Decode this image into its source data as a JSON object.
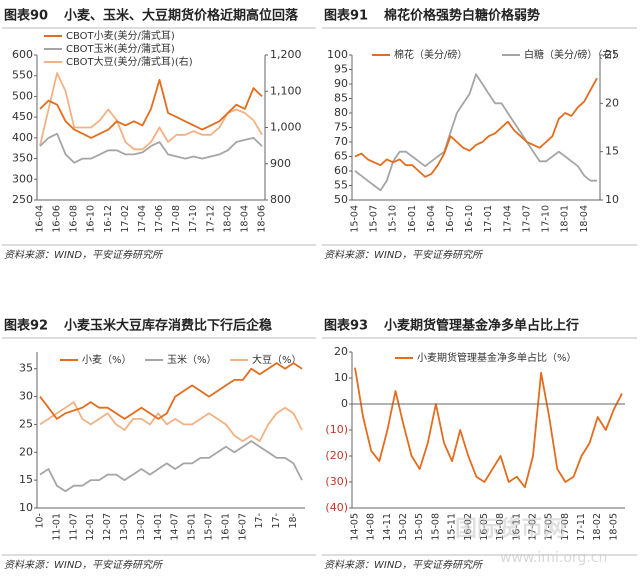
{
  "chart_data": [
    {
      "type": "line",
      "label": "图表90",
      "title": "小麦、玉米、大豆期货价格近期高位回落",
      "source": "资料来源：WIND，平安证券研究所",
      "categories": [
        "16-04",
        null,
        "16-06",
        null,
        "16-08",
        null,
        "16-10",
        null,
        "16-12",
        null,
        "17-02",
        null,
        "17-04",
        null,
        "17-06",
        null,
        "17-08",
        null,
        "17-10",
        null,
        "17-12",
        null,
        "18-02",
        null,
        "18-04",
        null,
        "18-06"
      ],
      "ylim": [
        250,
        600
      ],
      "yticks": [
        250,
        300,
        350,
        400,
        450,
        500,
        550,
        600
      ],
      "y2lim": [
        800,
        1200
      ],
      "y2ticks": [
        800,
        900,
        {
          "value": 1000,
          "label": "1,000"
        },
        {
          "value": 1100,
          "label": "1,100"
        },
        {
          "value": 1200,
          "label": "1,200"
        }
      ],
      "series": [
        {
          "name": "CBOT小麦(美分/蒲式耳)",
          "color": "#e36c1e",
          "values": [
            470,
            490,
            480,
            440,
            420,
            410,
            400,
            410,
            420,
            440,
            430,
            440,
            430,
            470,
            540,
            460,
            450,
            440,
            430,
            420,
            430,
            440,
            460,
            480,
            470,
            520,
            500
          ]
        },
        {
          "name": "CBOT玉米(美分/蒲式耳)",
          "color": "#a5a5a5",
          "values": [
            380,
            400,
            410,
            360,
            340,
            350,
            350,
            360,
            370,
            370,
            360,
            360,
            365,
            380,
            390,
            360,
            355,
            350,
            355,
            350,
            355,
            360,
            370,
            390,
            395,
            400,
            380
          ]
        },
        {
          "name": "CBOT大豆(美分/蒲式耳)(右)",
          "color": "#f4b183",
          "axis": "y2",
          "values": [
            950,
            1050,
            1150,
            1100,
            1000,
            1000,
            1000,
            1020,
            1050,
            1020,
            960,
            940,
            940,
            960,
            1000,
            960,
            980,
            980,
            990,
            980,
            980,
            1000,
            1040,
            1050,
            1040,
            1020,
            980
          ]
        }
      ]
    },
    {
      "type": "line",
      "label": "图表91",
      "title": "棉花价格强势白糖价格弱势",
      "source": "资料来源：WIND，平安证券研究所",
      "categories": [
        "15-04",
        null,
        null,
        "15-07",
        null,
        null,
        "15-10",
        null,
        null,
        "16-01",
        null,
        null,
        "16-04",
        null,
        null,
        "16-07",
        null,
        null,
        "16-10",
        null,
        null,
        "17-01",
        null,
        null,
        "17-04",
        null,
        null,
        "17-07",
        null,
        null,
        "17-10",
        null,
        null,
        "18-01",
        null,
        null,
        "18-04",
        null,
        null
      ],
      "ylim": [
        50,
        100
      ],
      "yticks": [
        50,
        55,
        60,
        65,
        70,
        75,
        80,
        85,
        90,
        95,
        100
      ],
      "y2lim": [
        10,
        25
      ],
      "y2ticks": [
        10,
        15,
        20,
        25
      ],
      "series": [
        {
          "name": "棉花（美分/磅）",
          "color": "#e36c1e",
          "values": [
            65,
            66,
            64,
            63,
            62,
            64,
            63,
            64,
            62,
            62,
            60,
            58,
            59,
            62,
            66,
            72,
            70,
            68,
            67,
            69,
            70,
            72,
            73,
            75,
            77,
            74,
            72,
            70,
            69,
            68,
            70,
            72,
            78,
            80,
            79,
            82,
            84,
            88,
            92
          ]
        },
        {
          "name": "白糖（美分/磅）（右）",
          "color": "#a5a5a5",
          "axis": "y2",
          "values": [
            13,
            12.5,
            12,
            11.5,
            11,
            12,
            14,
            15,
            15,
            14.5,
            14,
            13.5,
            14,
            14.5,
            15,
            17,
            19,
            20,
            21,
            23,
            22,
            21,
            20,
            20,
            19,
            18,
            17,
            16,
            15,
            14,
            14,
            14.5,
            15,
            14.5,
            14,
            13.5,
            12.5,
            12,
            12
          ]
        }
      ]
    },
    {
      "type": "line",
      "label": "图表92",
      "title": "小麦玉米大豆库存消费比下行后企稳",
      "source": "资料来源：WIND，平安证券研究所",
      "categories": [
        "10-",
        null,
        "11-01",
        null,
        "11-07",
        null,
        "12-01",
        null,
        "12-07",
        null,
        "13-01",
        null,
        "13-07",
        null,
        "14-01",
        null,
        "14-07",
        null,
        "15-01",
        null,
        "15-07",
        null,
        "16-01",
        null,
        "16-07",
        null,
        "17-",
        null,
        "17-",
        null,
        "18-",
        null
      ],
      "ylim": [
        10,
        38
      ],
      "yticks": [
        10,
        15,
        20,
        25,
        30,
        35
      ],
      "series": [
        {
          "name": "小麦（%）",
          "color": "#e36c1e",
          "values": [
            30,
            28,
            26,
            27,
            27.5,
            28,
            29,
            28,
            28,
            27,
            26,
            27,
            28,
            27,
            26,
            27,
            30,
            31,
            32,
            31,
            30,
            31,
            32,
            33,
            33,
            35,
            34,
            35,
            36,
            35,
            36,
            35
          ]
        },
        {
          "name": "玉米（%）",
          "color": "#a5a5a5",
          "values": [
            16,
            17,
            14,
            13,
            14,
            14,
            15,
            15,
            16,
            16,
            15,
            16,
            17,
            16,
            17,
            18,
            17,
            18,
            18,
            19,
            19,
            20,
            21,
            20,
            21,
            22,
            21,
            20,
            19,
            19,
            18,
            15
          ]
        },
        {
          "name": "大豆（%）",
          "color": "#f4b183",
          "values": [
            25,
            26,
            27,
            28,
            29,
            26,
            25,
            26,
            27,
            25,
            24,
            26,
            26,
            25,
            27,
            25,
            26,
            25,
            25,
            26,
            27,
            26,
            25,
            23,
            22,
            23,
            22,
            25,
            27,
            28,
            27,
            24
          ]
        }
      ]
    },
    {
      "type": "line",
      "label": "图表93",
      "title": "小麦期货管理基金净多单占比上行",
      "source": "资料来源：WIND，平安证券研究所",
      "categories": [
        "14-05",
        null,
        "14-08",
        null,
        "14-11",
        null,
        "15-02",
        null,
        "15-05",
        null,
        "15-08",
        null,
        "15-11",
        null,
        "16-02",
        null,
        "16-05",
        null,
        "16-08",
        null,
        "16-11",
        null,
        "17-02",
        null,
        "17-05",
        null,
        "17-08",
        null,
        "17-11",
        null,
        "18-02",
        null,
        "18-05",
        null
      ],
      "ylim": [
        -40,
        20
      ],
      "yticks": [
        {
          "value": -40,
          "label": "(40)"
        },
        {
          "value": -30,
          "label": "(30)"
        },
        {
          "value": -20,
          "label": "(20)"
        },
        {
          "value": -10,
          "label": "(10)"
        },
        0,
        10,
        20
      ],
      "negative_tick_color": "#c0392b",
      "series": [
        {
          "name": "小麦期货管理基金净多单占比（%）",
          "color": "#e36c1e",
          "values": [
            14,
            -5,
            -18,
            -22,
            -10,
            5,
            -8,
            -20,
            -25,
            -15,
            0,
            -15,
            -22,
            -10,
            -20,
            -28,
            -30,
            -25,
            -20,
            -30,
            -28,
            -32,
            -20,
            12,
            -5,
            -25,
            -30,
            -28,
            -20,
            -15,
            -5,
            -10,
            -2,
            4
          ]
        }
      ]
    }
  ],
  "watermark": {
    "name": "国际货币网",
    "url": "www.imi.org.cn"
  }
}
